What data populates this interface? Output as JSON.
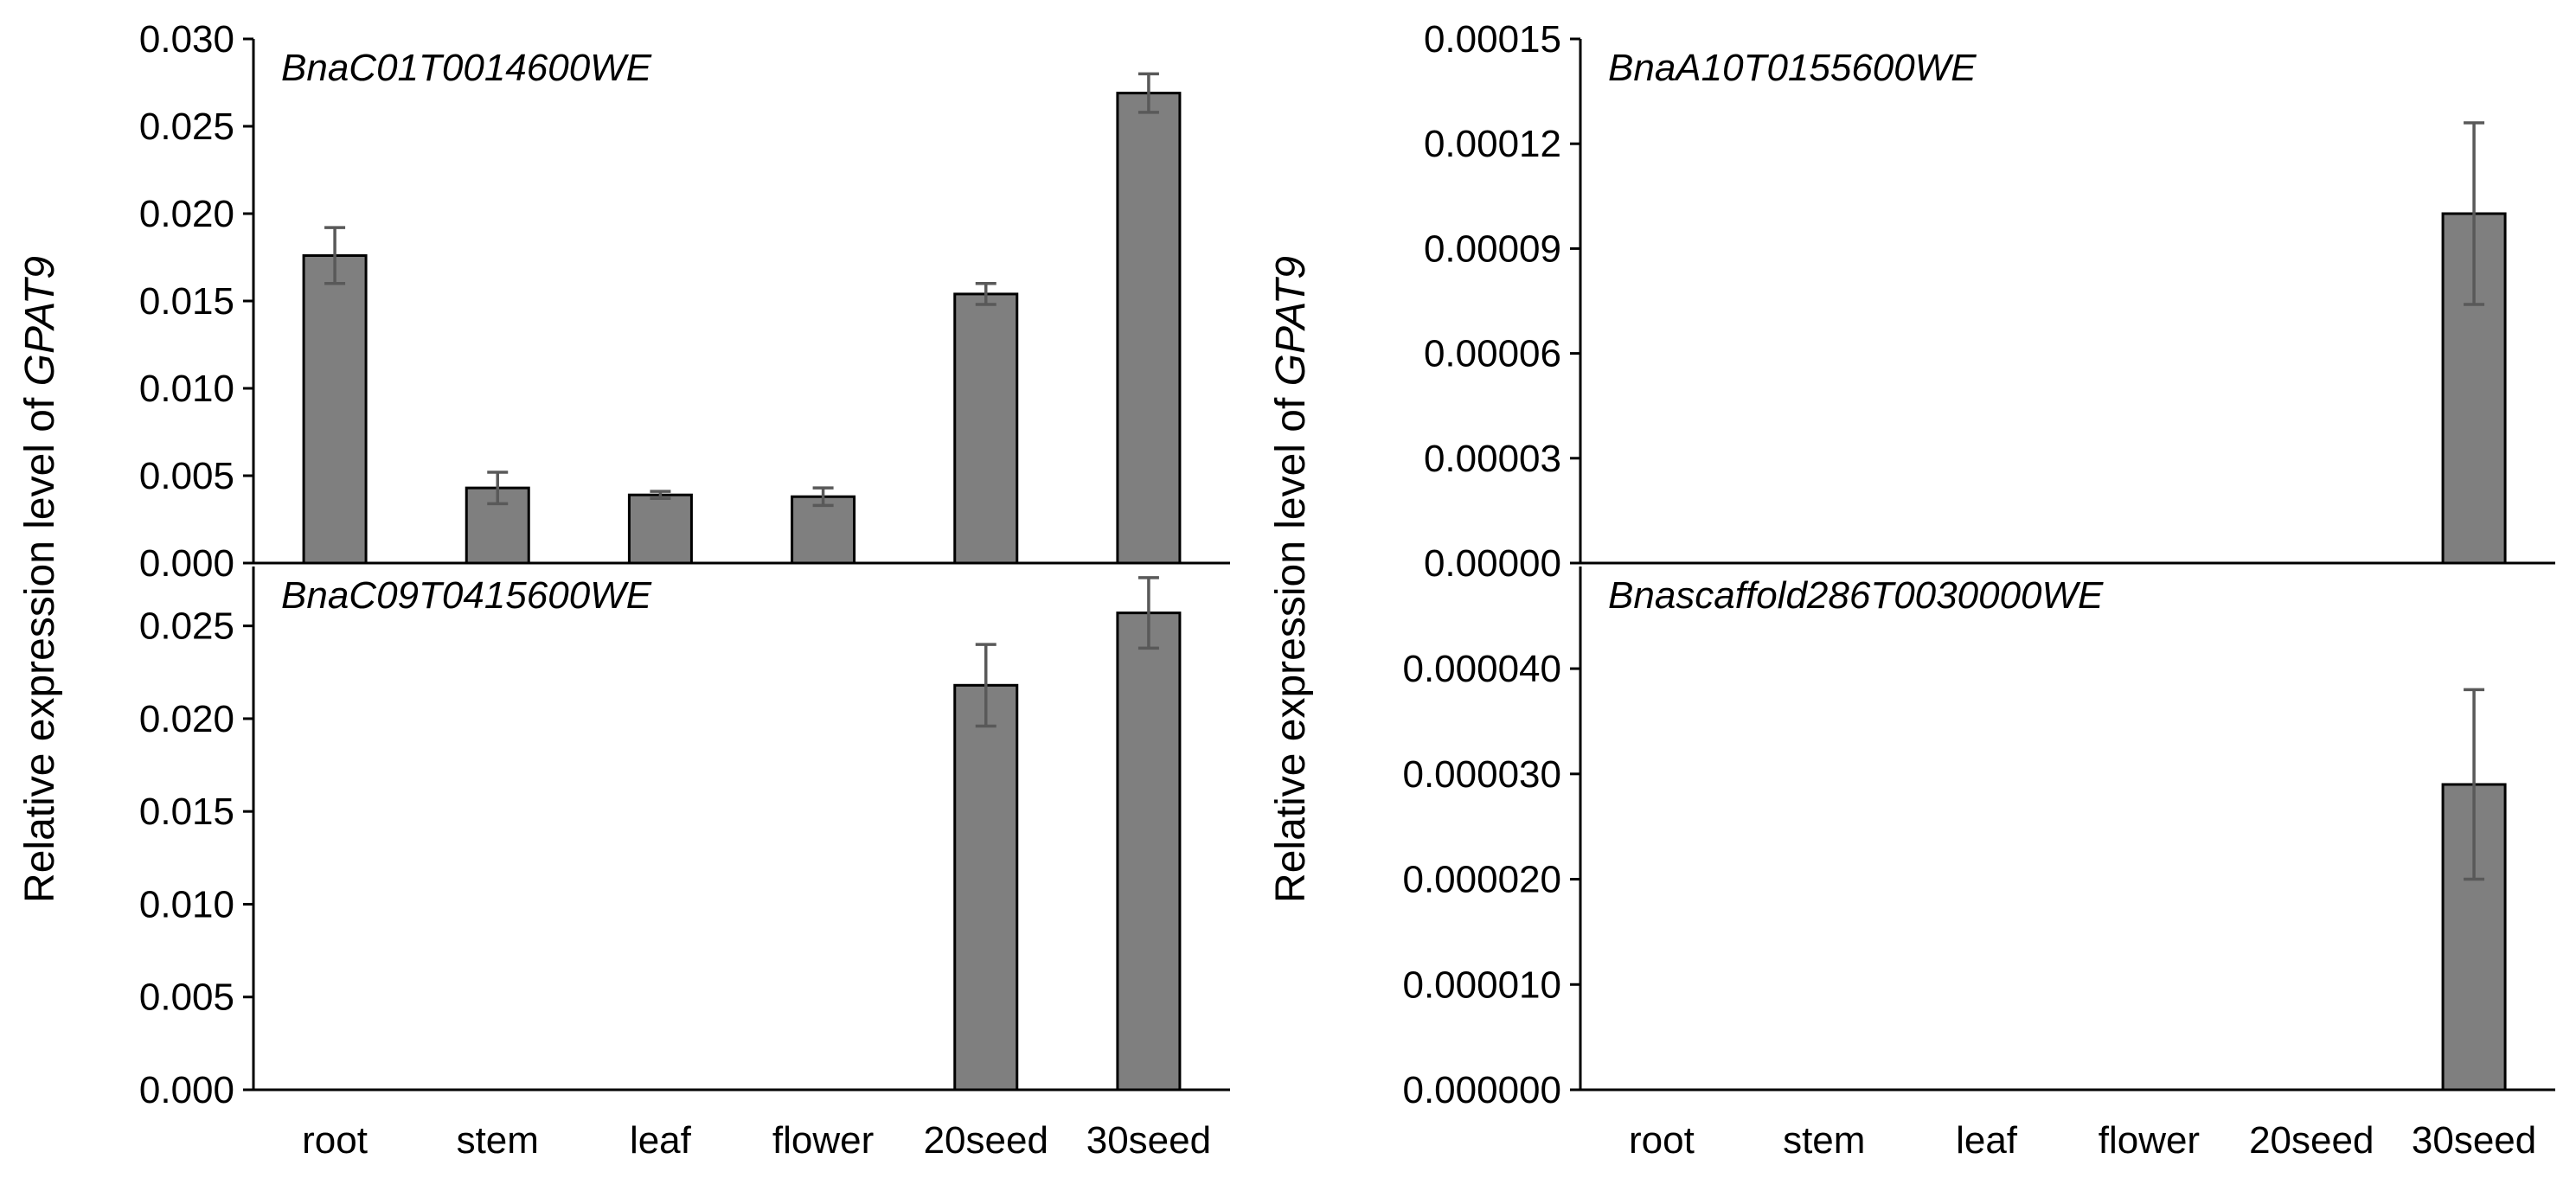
{
  "figure": {
    "ylabel_prefix": "Relative expression level of ",
    "ylabel_gene": "GPAT9",
    "bar_color": "#7f7f7f",
    "bar_stroke": "#000000",
    "error_color": "#595959"
  },
  "chart_data": [
    {
      "type": "bar",
      "panel": "top-left",
      "title": "BnaC01T0014600WE",
      "categories": [
        "root",
        "stem",
        "leaf",
        "flower",
        "20seed",
        "30seed"
      ],
      "values": [
        0.0176,
        0.0043,
        0.0039,
        0.0038,
        0.0154,
        0.0269
      ],
      "errors": [
        0.0016,
        0.0009,
        0.0002,
        0.0005,
        0.0006,
        0.0011
      ],
      "ylim": [
        0,
        0.03
      ],
      "yticks": [
        "0.000",
        "0.005",
        "0.010",
        "0.015",
        "0.020",
        "0.025",
        "0.030"
      ],
      "ytick_values": [
        0,
        0.005,
        0.01,
        0.015,
        0.02,
        0.025,
        0.03
      ],
      "show_xticklabels": false
    },
    {
      "type": "bar",
      "panel": "bottom-left",
      "title": "BnaC09T0415600WE",
      "categories": [
        "root",
        "stem",
        "leaf",
        "flower",
        "20seed",
        "30seed"
      ],
      "values": [
        0,
        0,
        0,
        0,
        0.0218,
        0.0257
      ],
      "errors": [
        0,
        0,
        0,
        0,
        0.0022,
        0.0019
      ],
      "ylim": [
        0,
        0.0282
      ],
      "yticks": [
        "0.000",
        "0.005",
        "0.010",
        "0.015",
        "0.020",
        "0.025"
      ],
      "ytick_values": [
        0,
        0.005,
        0.01,
        0.015,
        0.02,
        0.025
      ],
      "show_xticklabels": true
    },
    {
      "type": "bar",
      "panel": "top-right",
      "title": "BnaA10T0155600WE",
      "categories": [
        "root",
        "stem",
        "leaf",
        "flower",
        "20seed",
        "30seed"
      ],
      "values": [
        0,
        0,
        0,
        0,
        0,
        0.0001
      ],
      "errors": [
        0,
        0,
        0,
        0,
        0,
        2.6e-05
      ],
      "ylim": [
        0,
        0.00015
      ],
      "yticks": [
        "0.00000",
        "0.00003",
        "0.00006",
        "0.00009",
        "0.00012",
        "0.00015"
      ],
      "ytick_values": [
        0,
        3e-05,
        6e-05,
        9e-05,
        0.00012,
        0.00015
      ],
      "show_xticklabels": false
    },
    {
      "type": "bar",
      "panel": "bottom-right",
      "title": "Bnascaffold286T0030000WE",
      "categories": [
        "root",
        "stem",
        "leaf",
        "flower",
        "20seed",
        "30seed"
      ],
      "values": [
        0,
        0,
        0,
        0,
        0,
        2.9e-05
      ],
      "errors": [
        0,
        0,
        0,
        0,
        0,
        9e-06
      ],
      "ylim": [
        0,
        4.97e-05
      ],
      "yticks": [
        "0.000000",
        "0.000010",
        "0.000020",
        "0.000030",
        "0.000040"
      ],
      "ytick_values": [
        0,
        1e-05,
        2e-05,
        3e-05,
        4e-05
      ],
      "show_xticklabels": true
    }
  ]
}
